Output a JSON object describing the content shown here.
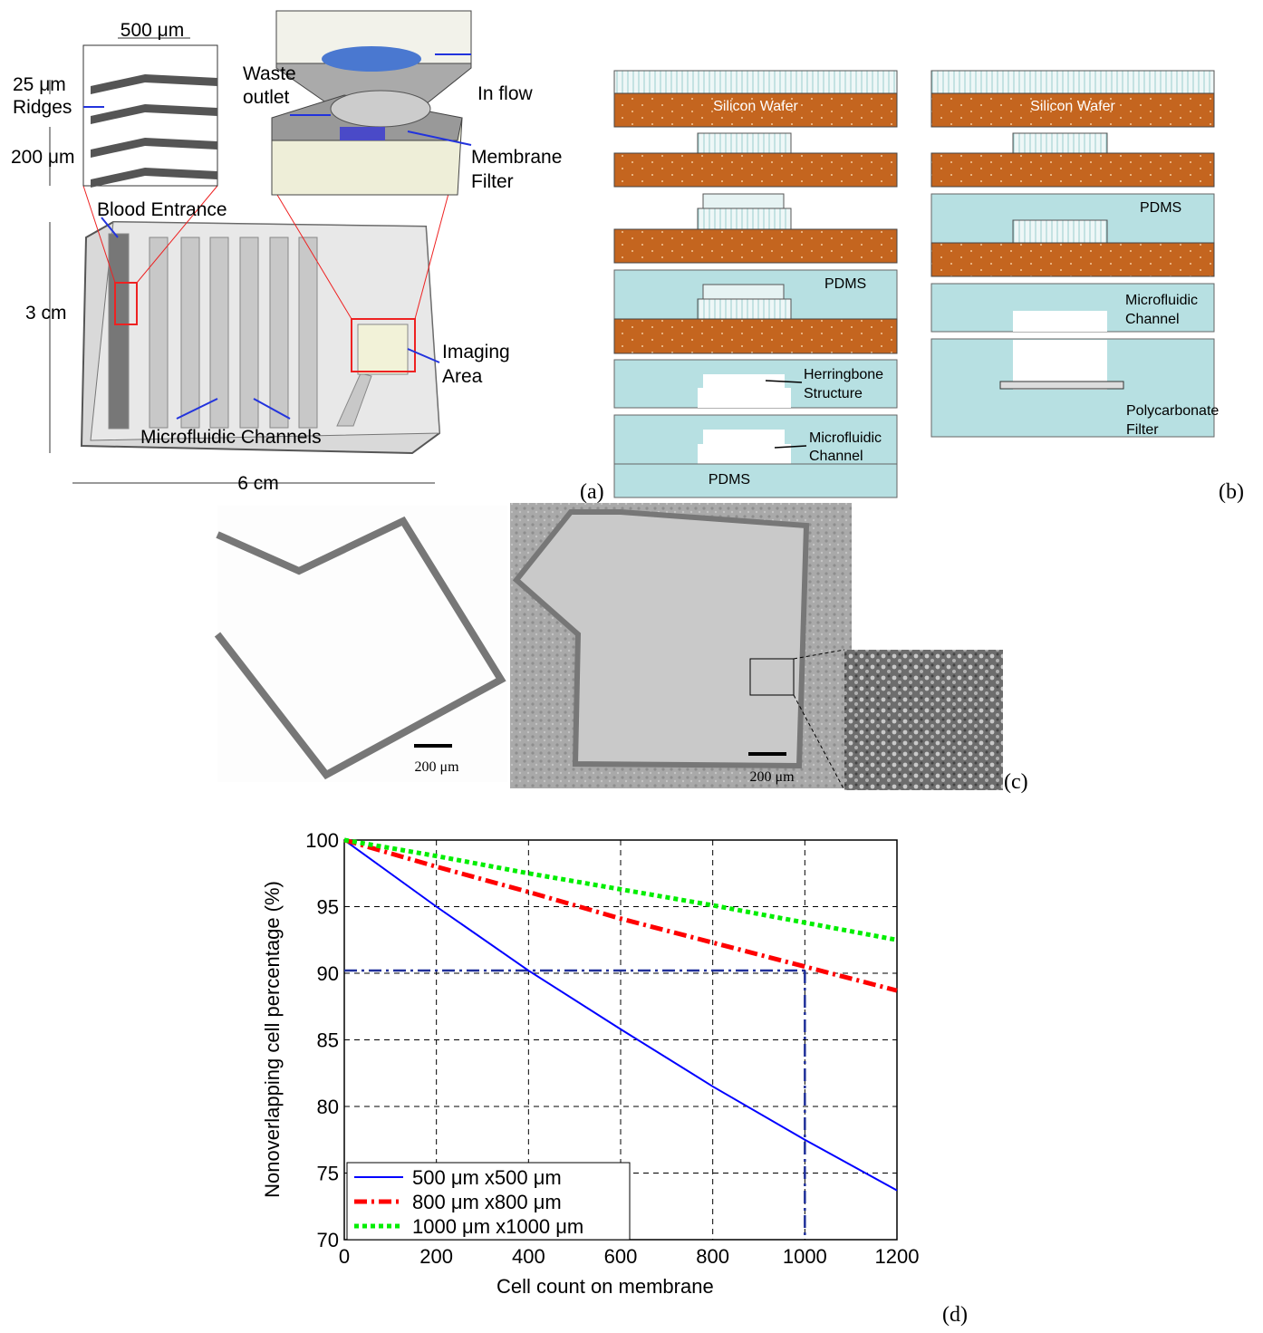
{
  "panel_a": {
    "width_label": "500 μm",
    "ridge_height": "25 μm",
    "ridges": "Ridges",
    "spacing": "200 μm",
    "waste_outlet": [
      "Waste",
      "outlet"
    ],
    "in_flow": "In flow",
    "membrane_filter": [
      "Membrane",
      "Filter"
    ],
    "blood_entrance": "Blood Entrance",
    "height": "3 cm",
    "imaging_area": [
      "Imaging",
      "Area"
    ],
    "channels": "Microfluidic Channels",
    "width": "6 cm",
    "panel_label": "(a)"
  },
  "panel_b": {
    "left": {
      "wafer": "Silicon Wafer",
      "pdms_mold": "PDMS",
      "herringbone": [
        "Herringbone",
        "Structure"
      ],
      "channel": [
        "Microfluidic",
        "Channel"
      ],
      "pdms_base": "PDMS"
    },
    "right": {
      "wafer": "Silicon Wafer",
      "pdms_mold": "PDMS",
      "channel": [
        "Microfluidic",
        "Channel"
      ],
      "filter": [
        "Polycarbonate",
        "Filter"
      ]
    },
    "panel_label": "(b)"
  },
  "panel_c": {
    "scale_bars": [
      "200 μm",
      "200 μm"
    ],
    "panel_label": "(c)"
  },
  "chart_data": {
    "type": "line",
    "xlabel": "Cell count on membrane",
    "ylabel": "Nonoverlapping cell percentage (%)",
    "x": [
      0,
      200,
      400,
      600,
      800,
      1000,
      1200
    ],
    "series": [
      {
        "name": "500 μm x500 μm",
        "color": "#0000ff",
        "style": "solid",
        "values": [
          100,
          95,
          90.2,
          85.8,
          81.5,
          77.5,
          73.7
        ]
      },
      {
        "name": "800 μm x800 μm",
        "color": "#ff0000",
        "style": "dashdot",
        "values": [
          100,
          98,
          96.1,
          94.1,
          92.3,
          90.5,
          88.7
        ]
      },
      {
        "name": "1000 μm x1000 μm",
        "color": "#00ee00",
        "style": "dotted",
        "values": [
          100,
          98.8,
          97.5,
          96.3,
          95.1,
          93.8,
          92.5
        ]
      }
    ],
    "guide": {
      "x": 1000,
      "y": 90.2,
      "color": "#1f2f99"
    },
    "xlim": [
      0,
      1200
    ],
    "xticks": [
      0,
      200,
      400,
      600,
      800,
      1000,
      1200
    ],
    "ylim": [
      70,
      100
    ],
    "yticks": [
      70,
      75,
      80,
      85,
      90,
      95,
      100
    ],
    "grid": true,
    "legend": "lower left"
  },
  "panel_d_label": "(d)"
}
